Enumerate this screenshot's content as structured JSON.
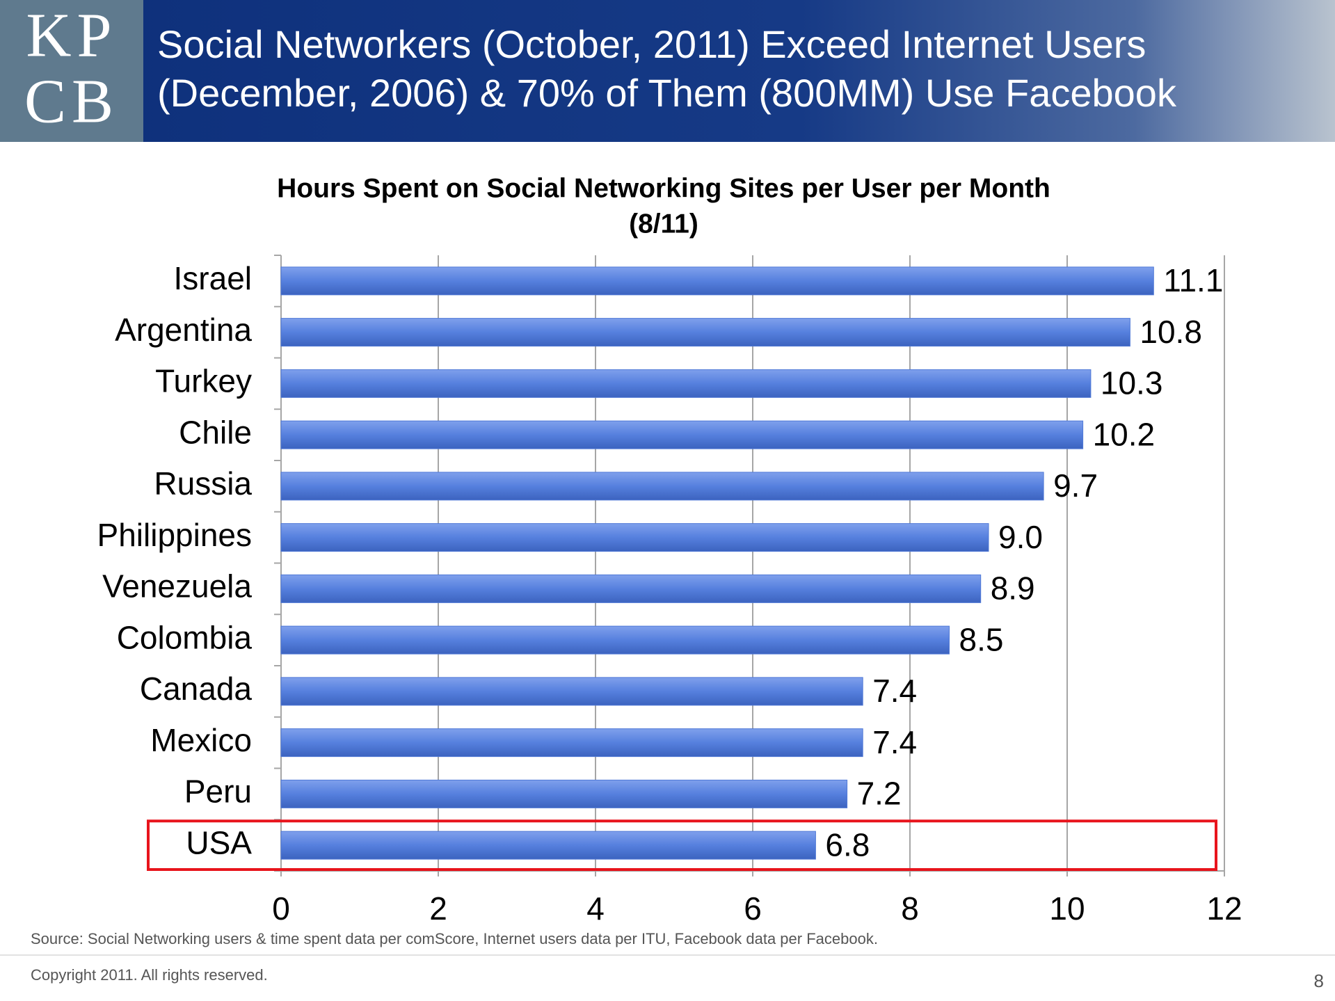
{
  "header": {
    "logo": [
      "KP",
      "CB"
    ],
    "title": [
      "Social Networkers (October, 2011) Exceed Internet Users",
      "(December, 2006) & 70% of Them (800MM) Use Facebook"
    ]
  },
  "chart_data": {
    "type": "bar",
    "orientation": "horizontal",
    "title": "Hours Spent on Social Networking Sites per User per Month",
    "subtitle": "(8/11)",
    "categories": [
      "Israel",
      "Argentina",
      "Turkey",
      "Chile",
      "Russia",
      "Philippines",
      "Venezuela",
      "Colombia",
      "Canada",
      "Mexico",
      "Peru",
      "USA"
    ],
    "values": [
      11.1,
      10.8,
      10.3,
      10.2,
      9.7,
      9.0,
      8.9,
      8.5,
      7.4,
      7.4,
      7.2,
      6.8
    ],
    "value_labels": [
      "11.1",
      "10.8",
      "10.3",
      "10.2",
      "9.7",
      "9.0",
      "8.9",
      "8.5",
      "7.4",
      "7.4",
      "7.2",
      "6.8"
    ],
    "color": "#4f78d6",
    "xlim": [
      0,
      12
    ],
    "xticks": [
      0,
      2,
      4,
      6,
      8,
      10,
      12
    ],
    "grid": true
  },
  "footer": {
    "source": "Source: Social Networking users & time spent data per comScore, Internet users data per ITU, Facebook data per Facebook.",
    "copyright": "Copyright 2011. All rights reserved.",
    "page": "8"
  }
}
